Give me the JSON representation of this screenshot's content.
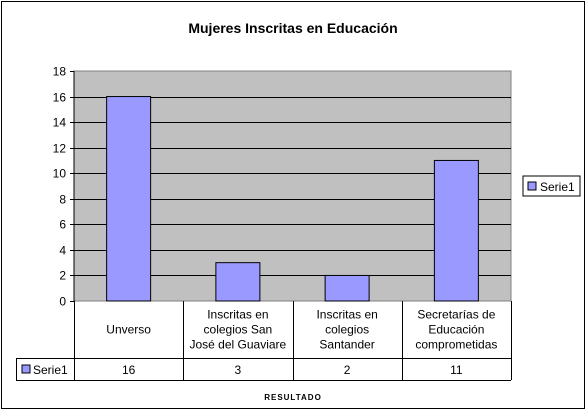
{
  "chart_data": {
    "type": "bar",
    "title": "Mujeres Inscritas en Educación",
    "xlabel": "RESULTADO",
    "ylabel": "",
    "ylim": [
      0,
      18
    ],
    "yticks": [
      0,
      2,
      4,
      6,
      8,
      10,
      12,
      14,
      16,
      18
    ],
    "categories": [
      "Unverso",
      "Inscritas en colegios San José del Guaviare",
      "Inscritas en colegios Santander",
      "Secretarías de Educación comprometidas"
    ],
    "category_lines": [
      [
        "Unverso"
      ],
      [
        "Inscritas en",
        "colegios San",
        "José del Guaviare"
      ],
      [
        "Inscritas en",
        "colegios",
        "Santander"
      ],
      [
        "Secretarías de",
        "Educación",
        "comprometidas"
      ]
    ],
    "series": [
      {
        "name": "Serie1",
        "values": [
          16,
          3,
          2,
          11
        ],
        "color": "#9999ff"
      }
    ],
    "plot_background": "#c0c0c0",
    "grid": true,
    "legend_position": "right",
    "data_table": true
  }
}
